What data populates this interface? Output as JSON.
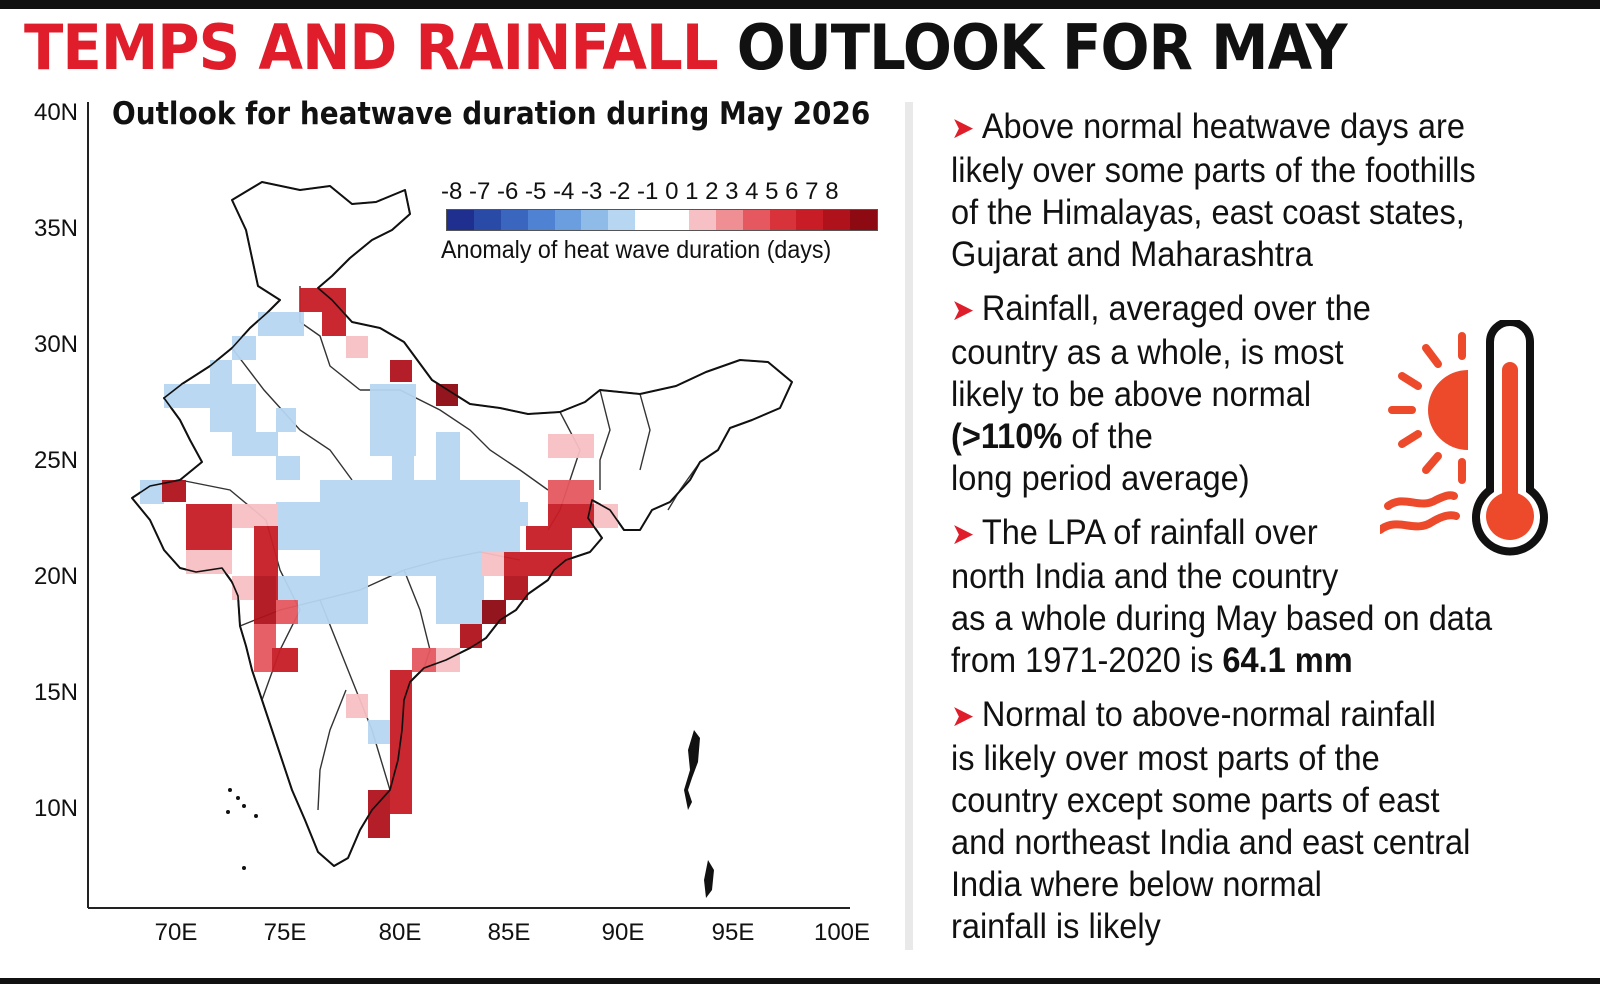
{
  "headline": {
    "part_red": "TEMPS AND RAINFALL",
    "part_black": "OUTLOOK FOR MAY",
    "red_color": "#e01e2b"
  },
  "map": {
    "title": "Outlook for heatwave duration during May 2026",
    "lat_labels": [
      "40N",
      "35N",
      "30N",
      "25N",
      "20N",
      "15N",
      "10N"
    ],
    "lon_labels": [
      "70E",
      "75E",
      "80E",
      "85E",
      "90E",
      "95E",
      "100E"
    ],
    "legend": {
      "ticks": "-8 -7 -6 -5 -4 -3 -2 -1 0 1  2  3  4  5  6  7  8",
      "caption": "Anomaly of heat wave duration (days)",
      "colors": [
        "#1f2f8f",
        "#2a4aa8",
        "#3a66c0",
        "#4f82d2",
        "#6a9edf",
        "#8fbbe9",
        "#b7d6f2",
        "#ffffff",
        "#ffffff",
        "#f7c0c4",
        "#ef8f93",
        "#e5585f",
        "#d8333a",
        "#c81d27",
        "#b0121c",
        "#8e0a12"
      ]
    }
  },
  "bullets": [
    {
      "lines": [
        "Above normal heatwave days are",
        "likely over some parts of the foothills",
        "of the Himalayas, east coast states,",
        "Gujarat and Maharashtra"
      ]
    },
    {
      "lines": [
        "Rainfall, averaged over the",
        "country as a whole, is most",
        "likely to be above normal"
      ],
      "bold_part": "(>110%",
      "after_bold": " of the",
      "last_line": "long period average)"
    },
    {
      "lines": [
        "The LPA of rainfall over",
        "north India and the country",
        "as a whole during May based on data"
      ],
      "last_prefix": "from 1971-2020 is ",
      "bold_value": "64.1 mm"
    },
    {
      "lines": [
        "Normal to above-normal rainfall",
        "is likely over most parts of the",
        "country except some parts of east",
        "and northeast India and east central",
        "India where below normal",
        "rainfall is likely"
      ]
    }
  ],
  "icon": "thermometer-sun-icon"
}
